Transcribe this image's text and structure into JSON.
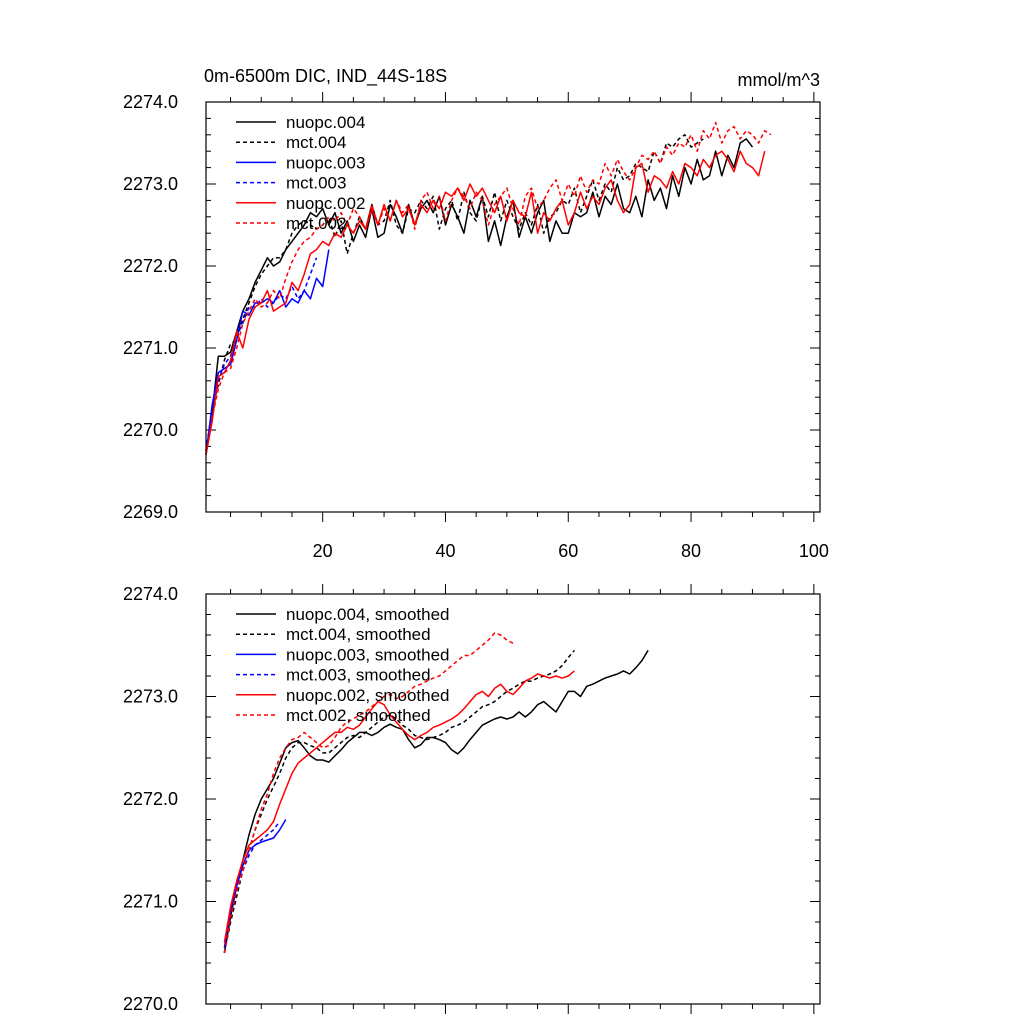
{
  "chart_data": [
    {
      "type": "line",
      "title": "0m-6500m DIC, IND_44S-18S",
      "units": "mmol/m^3",
      "xlim": [
        1,
        101
      ],
      "ylim": [
        2269.0,
        2274.0
      ],
      "xticks": [
        20,
        40,
        60,
        80,
        100
      ],
      "xtick_labels": [
        "20",
        "40",
        "60",
        "80",
        "100"
      ],
      "yticks": [
        2269.0,
        2270.0,
        2271.0,
        2272.0,
        2273.0,
        2274.0
      ],
      "ytick_labels": [
        "2269.0",
        "2270.0",
        "2271.0",
        "2272.0",
        "2273.0",
        "2274.0"
      ],
      "legend_position": "top-left",
      "series": [
        {
          "name": "nuopc.004",
          "label": "nuopc.004",
          "color": "#000000",
          "dash": "solid",
          "x_start": 1,
          "values": [
            2269.7,
            2270.2,
            2270.9,
            2270.9,
            2270.95,
            2271.2,
            2271.45,
            2271.6,
            2271.8,
            2271.95,
            2272.1,
            2272.0,
            2272.05,
            2272.2,
            2272.3,
            2272.4,
            2272.5,
            2272.65,
            2272.6,
            2272.7,
            2272.5,
            2272.65,
            2272.4,
            2272.55,
            2272.3,
            2272.5,
            2272.35,
            2272.7,
            2272.35,
            2272.4,
            2272.75,
            2272.6,
            2272.4,
            2272.75,
            2272.5,
            2272.7,
            2272.8,
            2272.65,
            2272.85,
            2272.5,
            2272.75,
            2272.6,
            2272.4,
            2272.8,
            2272.6,
            2272.85,
            2272.3,
            2272.55,
            2272.25,
            2272.6,
            2272.8,
            2272.35,
            2272.6,
            2272.4,
            2272.65,
            2272.8,
            2272.3,
            2272.55,
            2272.4,
            2272.4,
            2272.65,
            2272.6,
            2272.65,
            2272.9,
            2272.6,
            2272.85,
            2272.75,
            2273.0,
            2272.7,
            2272.65,
            2272.85,
            2272.6,
            2273.05,
            2272.8,
            2272.95,
            2272.7,
            2273.1,
            2272.85,
            2273.2,
            2273.0,
            2273.3,
            2273.05,
            2273.1,
            2273.4,
            2273.1,
            2273.35,
            2273.2,
            2273.5,
            2273.55,
            2273.45
          ]
        },
        {
          "name": "mct.004",
          "label": "mct.004",
          "color": "#000000",
          "dash": "dashed",
          "x_start": 1,
          "values": [
            2269.75,
            2270.25,
            2270.55,
            2270.85,
            2271.05,
            2271.1,
            2271.35,
            2271.55,
            2271.75,
            2271.9,
            2272.0,
            2272.1,
            2272.1,
            2272.2,
            2272.4,
            2272.5,
            2272.55,
            2272.5,
            2272.45,
            2272.5,
            2272.6,
            2272.35,
            2272.55,
            2272.15,
            2272.4,
            2272.6,
            2272.45,
            2272.75,
            2272.5,
            2272.55,
            2272.8,
            2272.5,
            2272.4,
            2272.7,
            2272.65,
            2272.8,
            2272.7,
            2272.85,
            2272.45,
            2272.7,
            2272.8,
            2272.55,
            2272.9,
            2272.65,
            2272.55,
            2272.85,
            2272.6,
            2272.9,
            2272.55,
            2272.8,
            2272.6,
            2272.45,
            2272.65,
            2272.5,
            2272.75,
            2272.4,
            2272.6,
            2272.65,
            2272.8,
            2272.75,
            2272.95,
            2272.65,
            2272.85,
            2273.05,
            2272.8,
            2273.0,
            2272.9,
            2273.2,
            2273.05,
            2273.1,
            2273.25,
            2273.2,
            2273.15,
            2273.4,
            2273.25,
            2273.5,
            2273.45,
            2273.55,
            2273.6,
            2273.45,
            2273.5,
            2273.55
          ]
        },
        {
          "name": "nuopc.003",
          "label": "nuopc.003",
          "color": "#0000ff",
          "dash": "solid",
          "x_start": 1,
          "values": [
            2269.7,
            2270.3,
            2270.7,
            2270.75,
            2270.8,
            2271.1,
            2271.45,
            2271.4,
            2271.55,
            2271.55,
            2271.6,
            2271.55,
            2271.7,
            2271.5,
            2271.6,
            2271.55,
            2271.7,
            2271.6,
            2271.85,
            2271.75,
            2272.2
          ]
        },
        {
          "name": "mct.003",
          "label": "mct.003",
          "color": "#0000ff",
          "dash": "dashed",
          "x_start": 1,
          "values": [
            2269.75,
            2270.2,
            2270.6,
            2270.8,
            2270.9,
            2271.15,
            2271.3,
            2271.5,
            2271.5,
            2271.6,
            2271.5,
            2271.55,
            2271.65,
            2271.6,
            2271.75,
            2271.6,
            2271.7,
            2271.9,
            2272.1
          ]
        },
        {
          "name": "nuopc.002",
          "label": "nuopc.002",
          "color": "#ff0000",
          "dash": "solid",
          "x_start": 1,
          "values": [
            2269.7,
            2270.1,
            2270.65,
            2270.7,
            2270.85,
            2271.2,
            2271.0,
            2271.35,
            2271.5,
            2271.55,
            2271.7,
            2271.45,
            2271.5,
            2271.55,
            2271.8,
            2271.7,
            2271.9,
            2272.15,
            2272.2,
            2272.3,
            2272.25,
            2272.4,
            2272.35,
            2272.5,
            2272.4,
            2272.55,
            2272.45,
            2272.7,
            2272.5,
            2272.75,
            2272.55,
            2272.8,
            2272.6,
            2272.7,
            2272.5,
            2272.75,
            2272.65,
            2272.8,
            2272.7,
            2272.9,
            2272.85,
            2272.95,
            2272.8,
            2273.0,
            2272.85,
            2272.95,
            2272.8,
            2272.65,
            2272.85,
            2272.55,
            2272.8,
            2272.65,
            2272.6,
            2272.9,
            2272.4,
            2272.65,
            2272.55,
            2272.7,
            2272.8,
            2272.5,
            2272.65,
            2272.9,
            2272.7,
            2272.85,
            2272.75,
            2272.95,
            2273.05,
            2272.8,
            2272.65,
            2272.75,
            2273.2,
            2273.25,
            2272.9,
            2273.1,
            2273.05,
            2272.95,
            2273.15,
            2273.0,
            2273.25,
            2273.2,
            2273.1,
            2273.3,
            2273.2,
            2273.35,
            2273.4,
            2273.3,
            2273.15,
            2273.4,
            2273.25,
            2273.2,
            2273.1,
            2273.4
          ]
        },
        {
          "name": "mct.002",
          "label": "mct.002",
          "color": "#ff0000",
          "dash": "dashed",
          "x_start": 1,
          "values": [
            2269.7,
            2270.15,
            2270.5,
            2270.7,
            2270.75,
            2271.0,
            2271.3,
            2271.45,
            2271.6,
            2271.5,
            2271.55,
            2271.7,
            2271.6,
            2271.85,
            2272.05,
            2272.2,
            2272.3,
            2272.35,
            2272.45,
            2272.5,
            2272.6,
            2272.55,
            2272.65,
            2272.5,
            2272.7,
            2272.6,
            2272.45,
            2272.75,
            2272.5,
            2272.7,
            2272.55,
            2272.8,
            2272.65,
            2272.75,
            2272.45,
            2272.8,
            2272.9,
            2272.7,
            2272.85,
            2272.55,
            2272.8,
            2272.95,
            2272.85,
            2272.7,
            2272.9,
            2272.8,
            2272.5,
            2272.75,
            2272.85,
            2272.95,
            2272.7,
            2272.5,
            2272.85,
            2272.95,
            2272.7,
            2272.8,
            2272.95,
            2273.05,
            2272.8,
            2273.0,
            2272.85,
            2273.1,
            2272.9,
            2273.05,
            2273.0,
            2273.25,
            2273.1,
            2273.3,
            2273.15,
            2273.05,
            2273.2,
            2273.35,
            2273.3,
            2273.4,
            2273.25,
            2273.45,
            2273.35,
            2273.5,
            2273.45,
            2273.6,
            2273.4,
            2273.65,
            2273.55,
            2273.75,
            2273.5,
            2273.65,
            2273.7,
            2273.55,
            2273.65,
            2273.6,
            2273.5,
            2273.65,
            2273.6
          ]
        }
      ]
    },
    {
      "type": "line",
      "title": "",
      "units": "",
      "xlim": [
        1,
        101
      ],
      "ylim": [
        2270.0,
        2274.0
      ],
      "xticks": [
        20,
        40,
        60,
        80,
        100
      ],
      "xtick_labels": [],
      "yticks": [
        2270.0,
        2271.0,
        2272.0,
        2273.0,
        2274.0
      ],
      "ytick_labels": [
        "2270.0",
        "2271.0",
        "2272.0",
        "2273.0",
        "2274.0"
      ],
      "legend_position": "top-left",
      "series": [
        {
          "name": "nuopc.004, smoothed",
          "label": "nuopc.004, smoothed",
          "color": "#000000",
          "dash": "solid",
          "x_start": 4,
          "values": [
            2270.5,
            2270.85,
            2271.15,
            2271.4,
            2271.65,
            2271.85,
            2272.0,
            2272.1,
            2272.2,
            2272.35,
            2272.5,
            2272.55,
            2272.57,
            2272.5,
            2272.42,
            2272.38,
            2272.38,
            2272.36,
            2272.42,
            2272.48,
            2272.55,
            2272.6,
            2272.65,
            2272.65,
            2272.62,
            2272.65,
            2272.7,
            2272.73,
            2272.7,
            2272.68,
            2272.58,
            2272.5,
            2272.53,
            2272.6,
            2272.6,
            2272.58,
            2272.55,
            2272.48,
            2272.44,
            2272.5,
            2272.58,
            2272.65,
            2272.72,
            2272.75,
            2272.78,
            2272.8,
            2272.78,
            2272.8,
            2272.85,
            2272.8,
            2272.85,
            2272.92,
            2272.95,
            2272.9,
            2272.85,
            2272.95,
            2273.05,
            2273.05,
            2273.0,
            2273.1,
            2273.12,
            2273.15,
            2273.18,
            2273.2,
            2273.22,
            2273.25,
            2273.22,
            2273.28,
            2273.35,
            2273.45
          ]
        },
        {
          "name": "mct.004, smoothed",
          "label": "mct.004, smoothed",
          "color": "#000000",
          "dash": "dashed",
          "x_start": 4,
          "values": [
            2270.5,
            2270.8,
            2271.05,
            2271.3,
            2271.5,
            2271.7,
            2271.85,
            2272.0,
            2272.12,
            2272.25,
            2272.4,
            2272.5,
            2272.55,
            2272.55,
            2272.52,
            2272.5,
            2272.45,
            2272.45,
            2272.5,
            2272.55,
            2272.6,
            2272.62,
            2272.6,
            2272.65,
            2272.7,
            2272.75,
            2272.8,
            2272.82,
            2272.78,
            2272.72,
            2272.68,
            2272.62,
            2272.6,
            2272.58,
            2272.6,
            2272.62,
            2272.65,
            2272.7,
            2272.72,
            2272.75,
            2272.8,
            2272.85,
            2272.9,
            2272.92,
            2272.95,
            2273.0,
            2273.05,
            2273.08,
            2273.12,
            2273.15,
            2273.15,
            2273.18,
            2273.2,
            2273.22,
            2273.25,
            2273.3,
            2273.38,
            2273.45
          ]
        },
        {
          "name": "nuopc.003, smoothed",
          "label": "nuopc.003, smoothed",
          "color": "#0000ff",
          "dash": "solid",
          "x_start": 4,
          "values": [
            2270.55,
            2270.9,
            2271.15,
            2271.35,
            2271.5,
            2271.55,
            2271.58,
            2271.6,
            2271.62,
            2271.7,
            2271.8
          ]
        },
        {
          "name": "mct.003, smoothed",
          "label": "mct.003, smoothed",
          "color": "#0000ff",
          "dash": "dashed",
          "x_start": 4,
          "values": [
            2270.5,
            2270.85,
            2271.1,
            2271.3,
            2271.45,
            2271.55,
            2271.6,
            2271.65,
            2271.7,
            2271.78
          ]
        },
        {
          "name": "nuopc.002, smoothed",
          "label": "nuopc.002, smoothed",
          "color": "#ff0000",
          "dash": "solid",
          "x_start": 4,
          "values": [
            2270.6,
            2270.95,
            2271.2,
            2271.4,
            2271.55,
            2271.6,
            2271.65,
            2271.7,
            2271.78,
            2271.95,
            2272.1,
            2272.25,
            2272.35,
            2272.4,
            2272.45,
            2272.5,
            2272.55,
            2272.6,
            2272.65,
            2272.65,
            2272.7,
            2272.68,
            2272.72,
            2272.8,
            2272.88,
            2272.95,
            2272.92,
            2272.82,
            2272.75,
            2272.68,
            2272.62,
            2272.58,
            2272.62,
            2272.65,
            2272.7,
            2272.72,
            2272.75,
            2272.78,
            2272.82,
            2272.88,
            2272.95,
            2273.02,
            2273.05,
            2273.0,
            2273.08,
            2273.12,
            2273.05,
            2273.02,
            2273.08,
            2273.15,
            2273.18,
            2273.22,
            2273.2,
            2273.18,
            2273.2,
            2273.18,
            2273.2,
            2273.25
          ]
        },
        {
          "name": "mct.002, smoothed",
          "label": "mct.002, smoothed",
          "color": "#ff0000",
          "dash": "dashed",
          "x_start": 4,
          "values": [
            2270.5,
            2270.85,
            2271.1,
            2271.3,
            2271.5,
            2271.7,
            2271.9,
            2272.05,
            2272.25,
            2272.4,
            2272.5,
            2272.58,
            2272.6,
            2272.65,
            2272.6,
            2272.55,
            2272.5,
            2272.52,
            2272.6,
            2272.7,
            2272.75,
            2272.78,
            2272.82,
            2272.85,
            2272.9,
            2272.95,
            2273.0,
            2273.02,
            2272.98,
            2273.0,
            2273.05,
            2273.1,
            2273.12,
            2273.15,
            2273.18,
            2273.2,
            2273.25,
            2273.3,
            2273.35,
            2273.4,
            2273.4,
            2273.45,
            2273.5,
            2273.55,
            2273.62,
            2273.6,
            2273.55,
            2273.52
          ]
        }
      ]
    }
  ]
}
